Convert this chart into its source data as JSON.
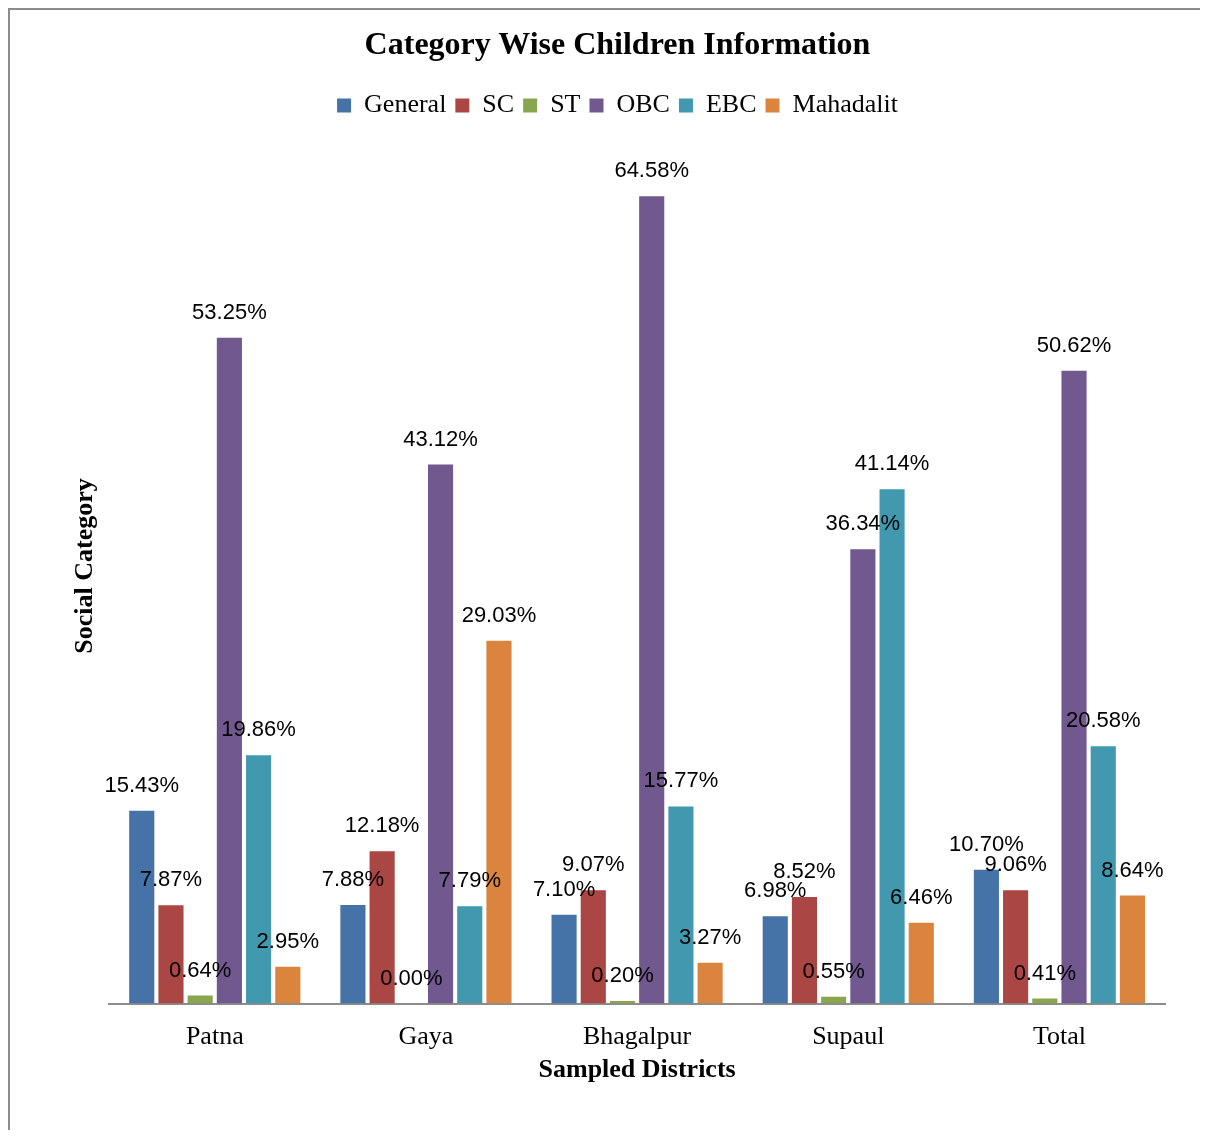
{
  "chart_data": {
    "type": "bar",
    "title": "Category Wise Children Information",
    "xlabel": "Sampled Districts",
    "ylabel": "Social Category",
    "categories": [
      "Patna",
      "Gaya",
      "Bhagalpur",
      "Supaul",
      "Total"
    ],
    "series": [
      {
        "name": "General",
        "color": "#4572a7",
        "values": [
          15.43,
          7.88,
          7.1,
          6.98,
          10.7
        ],
        "value_labels": [
          "15.43%",
          "7.88%",
          "7.10%",
          "6.98%",
          "10.70%"
        ]
      },
      {
        "name": "SC",
        "color": "#aa4643",
        "values": [
          7.87,
          12.18,
          9.07,
          8.52,
          9.06
        ],
        "value_labels": [
          "7.87%",
          "12.18%",
          "9.07%",
          "8.52%",
          "9.06%"
        ]
      },
      {
        "name": "ST",
        "color": "#89a54e",
        "values": [
          0.64,
          0.0,
          0.2,
          0.55,
          0.41
        ],
        "value_labels": [
          "0.64%",
          "0.00%",
          "0.20%",
          "0.55%",
          "0.41%"
        ]
      },
      {
        "name": "OBC",
        "color": "#71588f",
        "values": [
          53.25,
          43.12,
          64.58,
          36.34,
          50.62
        ],
        "value_labels": [
          "53.25%",
          "43.12%",
          "64.58%",
          "36.34%",
          "50.62%"
        ]
      },
      {
        "name": "EBC",
        "color": "#4198af",
        "values": [
          19.86,
          7.79,
          15.77,
          41.14,
          20.58
        ],
        "value_labels": [
          "19.86%",
          "7.79%",
          "15.77%",
          "41.14%",
          "20.58%"
        ]
      },
      {
        "name": "Mahadalit",
        "color": "#db843d",
        "values": [
          2.95,
          29.03,
          3.27,
          6.46,
          8.64
        ],
        "value_labels": [
          "2.95%",
          "29.03%",
          "3.27%",
          "6.46%",
          "8.64%"
        ]
      }
    ],
    "legend": "top",
    "grid": false,
    "tick_labels": "x"
  }
}
